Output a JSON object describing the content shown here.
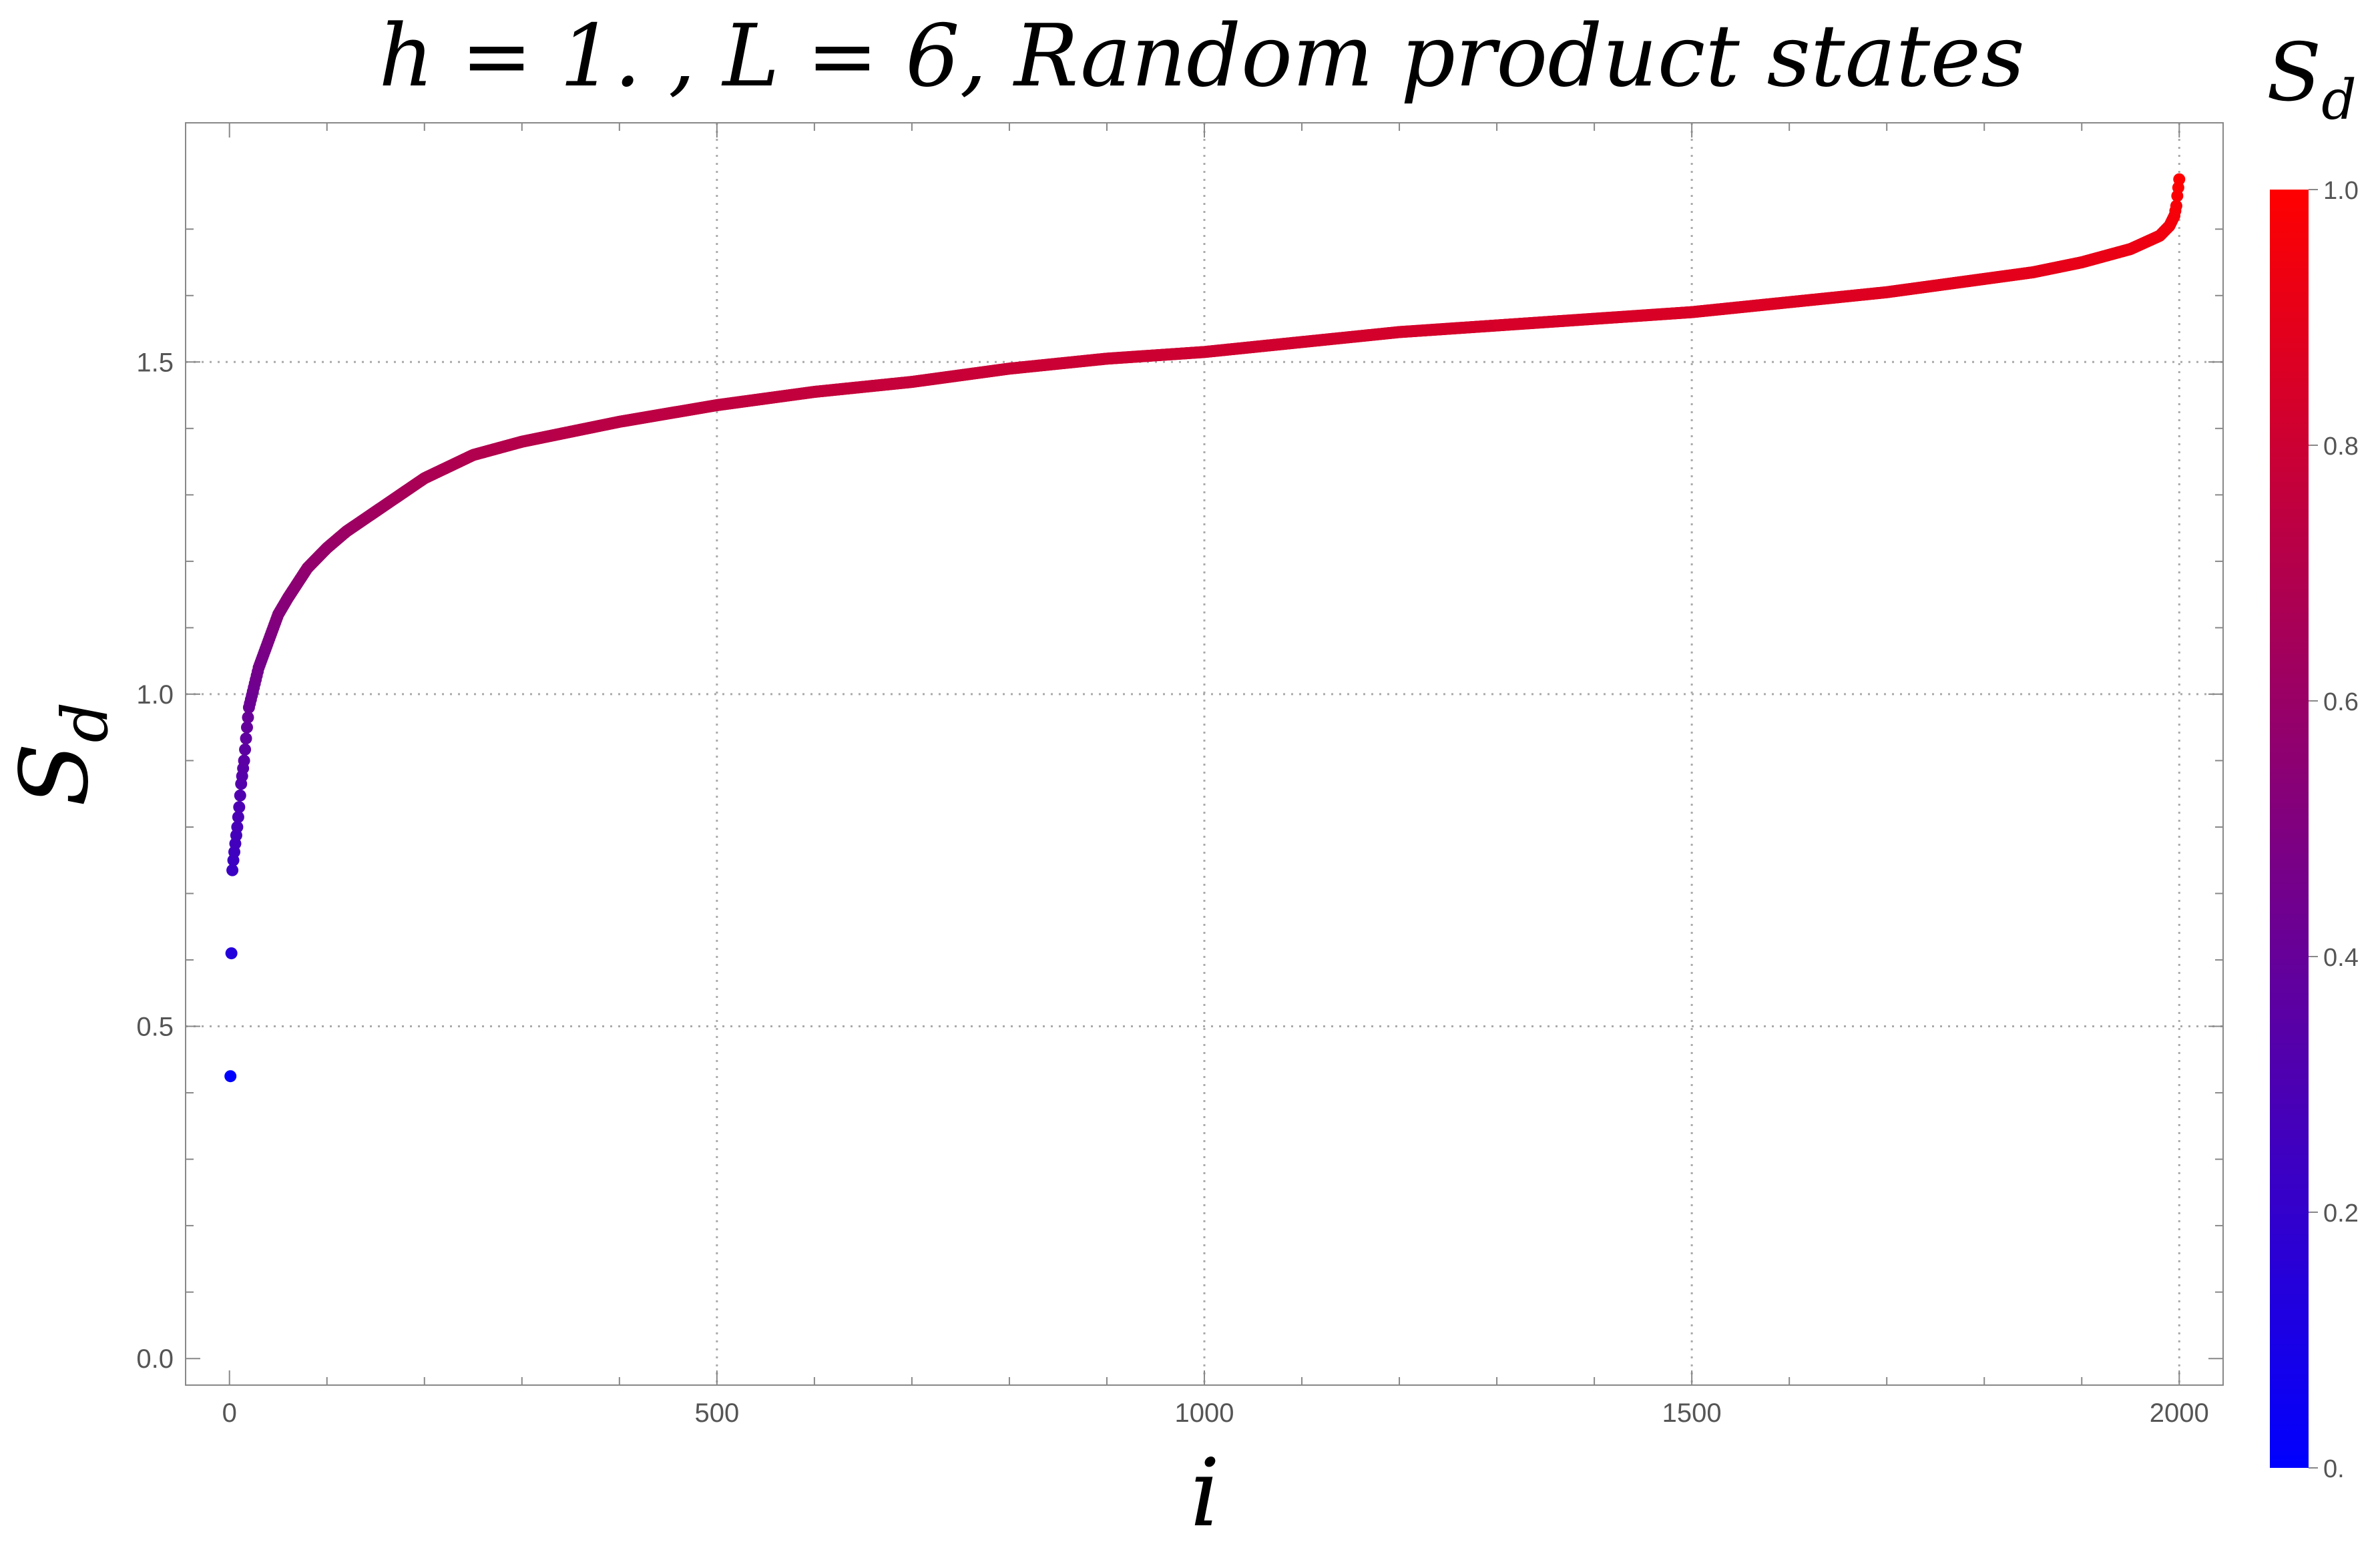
{
  "chart_data": {
    "type": "scatter",
    "title": "h = 1. , L = 6,  Random product states",
    "xlabel": "i",
    "ylabel": "S",
    "ylabel_sub": "d",
    "xlim": [
      -45,
      2045
    ],
    "ylim": [
      -0.04,
      1.86
    ],
    "x_ticks": [
      {
        "value": 0,
        "label": "0"
      },
      {
        "value": 500,
        "label": "500"
      },
      {
        "value": 1000,
        "label": "1000"
      },
      {
        "value": 1500,
        "label": "1500"
      },
      {
        "value": 2000,
        "label": "2000"
      }
    ],
    "y_ticks": [
      {
        "value": 0.0,
        "label": "0.0"
      },
      {
        "value": 0.5,
        "label": "0.5"
      },
      {
        "value": 1.0,
        "label": "1.0"
      },
      {
        "value": 1.5,
        "label": "1.5"
      }
    ],
    "grid": true,
    "n_points": 2000,
    "curve_knots": [
      [
        1,
        0.425
      ],
      [
        2,
        0.61
      ],
      [
        3,
        0.735
      ],
      [
        4,
        0.75
      ],
      [
        6,
        0.775
      ],
      [
        8,
        0.8
      ],
      [
        10,
        0.83
      ],
      [
        12,
        0.865
      ],
      [
        15,
        0.9
      ],
      [
        18,
        0.95
      ],
      [
        20,
        0.98
      ],
      [
        25,
        1.01
      ],
      [
        30,
        1.04
      ],
      [
        40,
        1.08
      ],
      [
        50,
        1.12
      ],
      [
        60,
        1.145
      ],
      [
        80,
        1.19
      ],
      [
        100,
        1.22
      ],
      [
        120,
        1.245
      ],
      [
        150,
        1.275
      ],
      [
        200,
        1.325
      ],
      [
        250,
        1.36
      ],
      [
        300,
        1.38
      ],
      [
        400,
        1.41
      ],
      [
        500,
        1.435
      ],
      [
        600,
        1.455
      ],
      [
        700,
        1.47
      ],
      [
        800,
        1.49
      ],
      [
        900,
        1.505
      ],
      [
        1000,
        1.515
      ],
      [
        1100,
        1.53
      ],
      [
        1200,
        1.545
      ],
      [
        1300,
        1.555
      ],
      [
        1400,
        1.565
      ],
      [
        1500,
        1.575
      ],
      [
        1600,
        1.59
      ],
      [
        1700,
        1.605
      ],
      [
        1800,
        1.625
      ],
      [
        1850,
        1.635
      ],
      [
        1900,
        1.65
      ],
      [
        1950,
        1.67
      ],
      [
        1980,
        1.69
      ],
      [
        1990,
        1.705
      ],
      [
        1995,
        1.72
      ],
      [
        1997,
        1.735
      ],
      [
        1998,
        1.75
      ],
      [
        2000,
        1.775
      ]
    ],
    "color_scale": {
      "title": "S",
      "title_sub": "d",
      "min_color": "#0000ff",
      "max_color": "#ff0000",
      "range": [
        0,
        1
      ],
      "ticks": [
        {
          "value": 0.0,
          "label": "0."
        },
        {
          "value": 0.2,
          "label": "0.2"
        },
        {
          "value": 0.4,
          "label": "0.4"
        },
        {
          "value": 0.6,
          "label": "0.6"
        },
        {
          "value": 0.8,
          "label": "0.8"
        },
        {
          "value": 1.0,
          "label": "1.0"
        }
      ]
    },
    "colors": {
      "frame": "#888888",
      "grid": "#aaaaaa",
      "tick_text": "#555555"
    }
  }
}
